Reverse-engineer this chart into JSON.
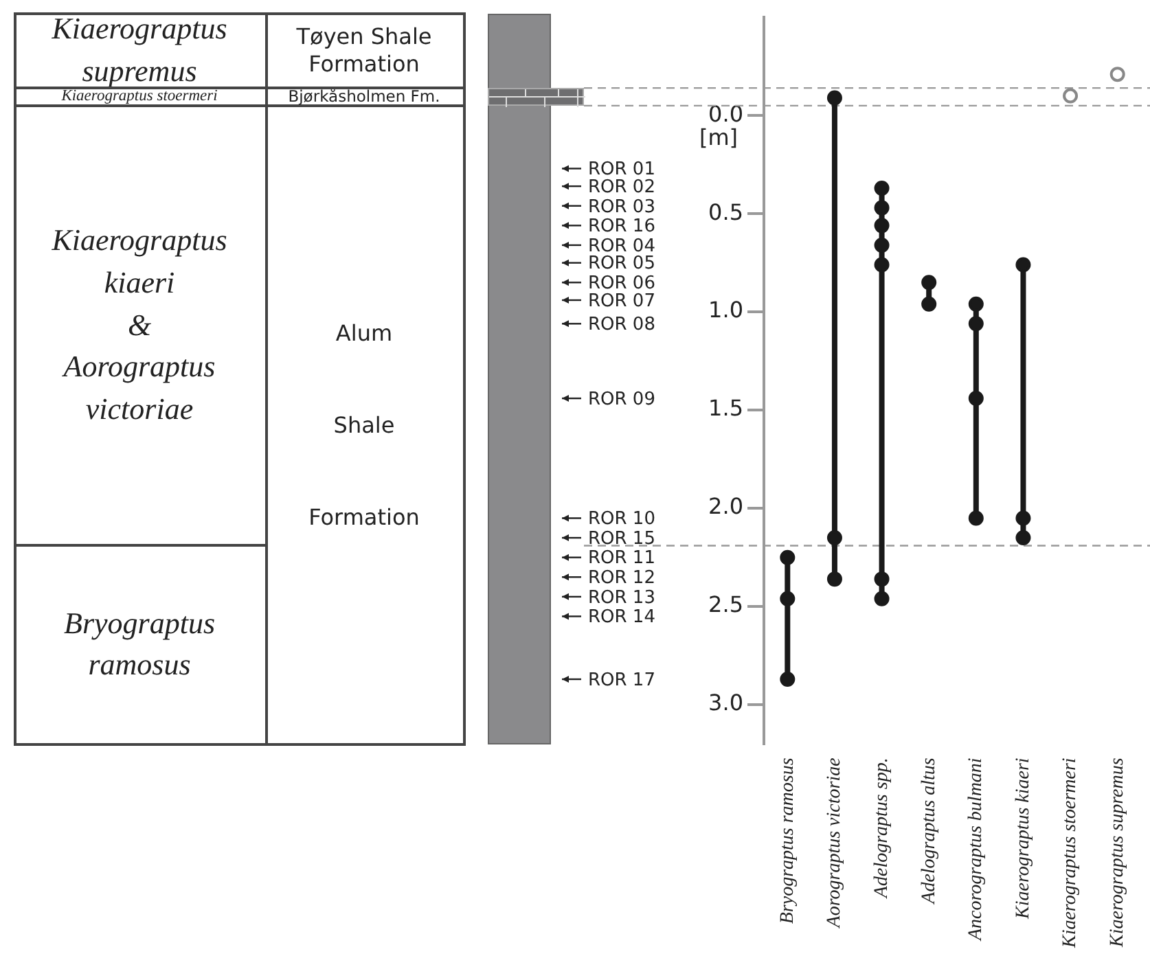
{
  "chart_data": {
    "type": "line",
    "ylabel": "[m]",
    "categories": [
      "Bryograptus ramosus",
      "Aorograptus victoriae",
      "Adelograptus spp.",
      "Adelograptus altus",
      "Ancorograptus bulmani",
      "Kiaerograptus kiaeri",
      "Kiaerograptus stoermeri",
      "Kiaerograptus supremus"
    ],
    "ylim": [
      3.2,
      -0.5
    ],
    "yticks": [
      {
        "value": 0,
        "label": "0.0"
      },
      {
        "value": 0.5,
        "label": "0.5"
      },
      {
        "value": 1,
        "label": "1.0"
      },
      {
        "value": 1.5,
        "label": "1.5"
      },
      {
        "value": 2,
        "label": "2.0"
      },
      {
        "value": 2.5,
        "label": "2.5"
      },
      {
        "value": 3,
        "label": "3.0"
      }
    ],
    "marker": "circle",
    "legend": false,
    "series": [
      {
        "color": "#1a1a1a",
        "x": [
          "Bryograptus ramosus",
          "Bryograptus ramosus",
          "Bryograptus ramosus"
        ],
        "values": [
          2.25,
          2.46,
          2.87
        ]
      },
      {
        "color": "#1a1a1a",
        "x": [
          "Aorograptus victoriae",
          "Aorograptus victoriae",
          "Aorograptus victoriae"
        ],
        "values": [
          -0.09,
          2.15,
          2.36
        ]
      },
      {
        "color": "#1a1a1a",
        "x": [
          "Adelograptus spp.",
          "Adelograptus spp.",
          "Adelograptus spp.",
          "Adelograptus spp.",
          "Adelograptus spp.",
          "Adelograptus spp.",
          "Adelograptus spp."
        ],
        "values": [
          0.37,
          0.47,
          0.56,
          0.66,
          0.76,
          2.36,
          2.46
        ]
      },
      {
        "color": "#1a1a1a",
        "x": [
          "Adelograptus altus",
          "Adelograptus altus"
        ],
        "values": [
          0.85,
          0.96
        ]
      },
      {
        "color": "#1a1a1a",
        "x": [
          "Ancorograptus bulmani",
          "Ancorograptus bulmani",
          "Ancorograptus bulmani",
          "Ancorograptus bulmani"
        ],
        "values": [
          0.96,
          1.06,
          1.44,
          2.05
        ]
      },
      {
        "color": "#1a1a1a",
        "x": [
          "Kiaerograptus kiaeri",
          "Kiaerograptus kiaeri",
          "Kiaerograptus kiaeri"
        ],
        "values": [
          0.76,
          2.05,
          2.15
        ]
      },
      {
        "type": "scatter",
        "color": "#888888",
        "x": [
          "Kiaerograptus stoermeri"
        ],
        "values": [
          -0.1
        ]
      },
      {
        "type": "scatter",
        "color": "#888888",
        "x": [
          "Kiaerograptus supremus"
        ],
        "values": [
          -0.21
        ]
      }
    ],
    "ref_lines": [
      {
        "axis": "y",
        "value": -0.14,
        "color": "#999999",
        "line_style": "dashed"
      },
      {
        "axis": "y",
        "value": -0.05,
        "color": "#999999",
        "line_style": "dashed"
      },
      {
        "axis": "y",
        "value": 2.19,
        "color": "#999999",
        "line_style": "dashed"
      },
      {
        "axis": "y",
        "value": 0.27,
        "label": "ROR 01",
        "color": "#222222",
        "line_style": "solid"
      },
      {
        "axis": "y",
        "value": 0.36,
        "label": "ROR 02",
        "color": "#222222",
        "line_style": "solid"
      },
      {
        "axis": "y",
        "value": 0.46,
        "label": "ROR 03",
        "color": "#222222",
        "line_style": "solid"
      },
      {
        "axis": "y",
        "value": 0.56,
        "label": "ROR 16",
        "color": "#222222",
        "line_style": "solid"
      },
      {
        "axis": "y",
        "value": 0.66,
        "label": "ROR 04",
        "color": "#222222",
        "line_style": "solid"
      },
      {
        "axis": "y",
        "value": 0.75,
        "label": "ROR 05",
        "color": "#222222",
        "line_style": "solid"
      },
      {
        "axis": "y",
        "value": 0.85,
        "label": "ROR 06",
        "color": "#222222",
        "line_style": "solid"
      },
      {
        "axis": "y",
        "value": 0.94,
        "label": "ROR 07",
        "color": "#222222",
        "line_style": "solid"
      },
      {
        "axis": "y",
        "value": 1.06,
        "label": "ROR 08",
        "color": "#222222",
        "line_style": "solid"
      },
      {
        "axis": "y",
        "value": 1.44,
        "label": "ROR 09",
        "color": "#222222",
        "line_style": "solid"
      },
      {
        "axis": "y",
        "value": 2.05,
        "label": "ROR 10",
        "color": "#222222",
        "line_style": "solid"
      },
      {
        "axis": "y",
        "value": 2.15,
        "label": "ROR 15",
        "color": "#222222",
        "line_style": "solid"
      },
      {
        "axis": "y",
        "value": 2.25,
        "label": "ROR 11",
        "color": "#222222",
        "line_style": "solid"
      },
      {
        "axis": "y",
        "value": 2.35,
        "label": "ROR 12",
        "color": "#222222",
        "line_style": "solid"
      },
      {
        "axis": "y",
        "value": 2.45,
        "label": "ROR 13",
        "color": "#222222",
        "line_style": "solid"
      },
      {
        "axis": "y",
        "value": 2.55,
        "label": "ROR 14",
        "color": "#222222",
        "line_style": "solid"
      },
      {
        "axis": "y",
        "value": 2.87,
        "label": "ROR 17",
        "color": "#222222",
        "line_style": "solid"
      }
    ],
    "annotations": [
      "Kiaerograptus\nsupremus",
      "Kiaerograptus stoermeri",
      "Kiaerograptus\nkiaeri\n&\nAorograptus\nvictoriae",
      "Bryograptus\nramosus",
      "Tøyen Shale\nFormation",
      "Bjørkåsholmen Fm.",
      "Alum\nShale\nFormation"
    ]
  }
}
